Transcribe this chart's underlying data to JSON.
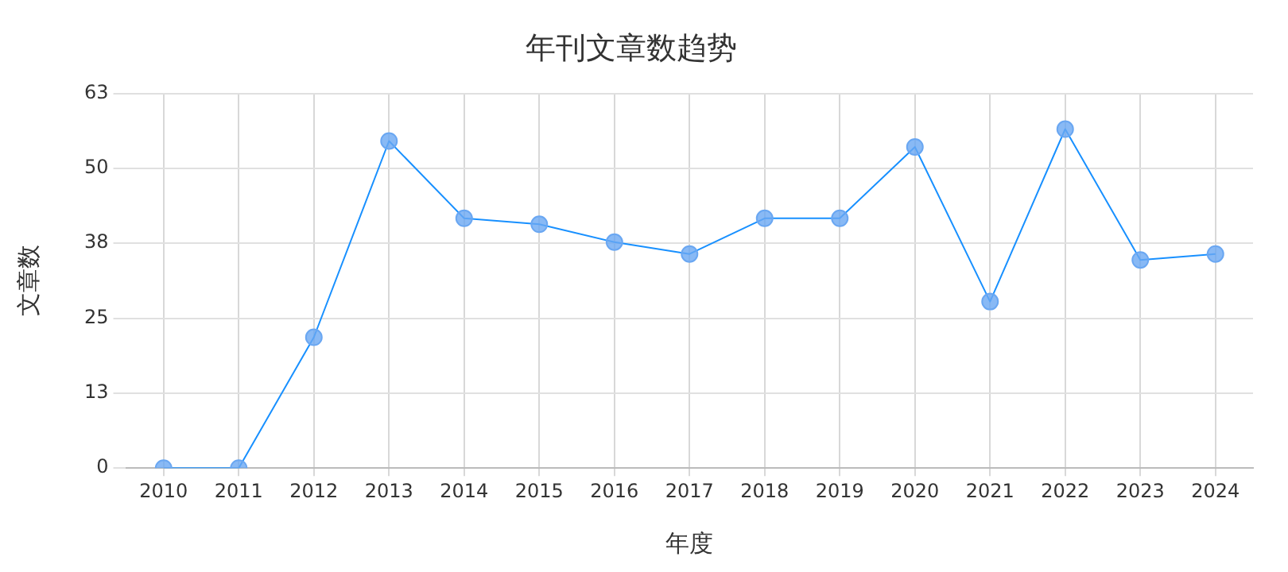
{
  "chart_data": {
    "type": "line",
    "title": "年刊文章数趋势",
    "xlabel": "年度",
    "ylabel": "文章数",
    "categories": [
      "2010",
      "2011",
      "2012",
      "2013",
      "2014",
      "2015",
      "2016",
      "2017",
      "2018",
      "2019",
      "2020",
      "2021",
      "2022",
      "2023",
      "2024"
    ],
    "series": [
      {
        "color": "#1890ff",
        "values": [
          0,
          0,
          22,
          55,
          42,
          41,
          38,
          36,
          42,
          42,
          54,
          28,
          57,
          35,
          36
        ]
      }
    ],
    "ylim": [
      0,
      63
    ],
    "yticks": [
      0,
      {
        "value": 12.6,
        "label": "13"
      },
      {
        "value": 25.2,
        "label": "25"
      },
      {
        "value": 37.8,
        "label": "38"
      },
      {
        "value": 50.4,
        "label": "50"
      },
      63
    ],
    "grid": true,
    "legend": false,
    "marker": "circle",
    "line_style": "solid"
  }
}
